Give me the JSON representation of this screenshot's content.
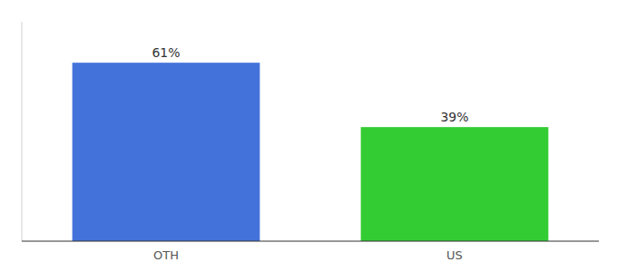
{
  "chart_data": {
    "type": "bar",
    "categories": [
      "OTH",
      "US"
    ],
    "values": [
      61,
      39
    ],
    "value_labels": [
      "61%",
      "39%"
    ],
    "colors": [
      "#4472db",
      "#33cc33"
    ],
    "ylim": [
      0,
      75
    ],
    "data_labels": true,
    "tick_labels": "x",
    "grid": false
  }
}
